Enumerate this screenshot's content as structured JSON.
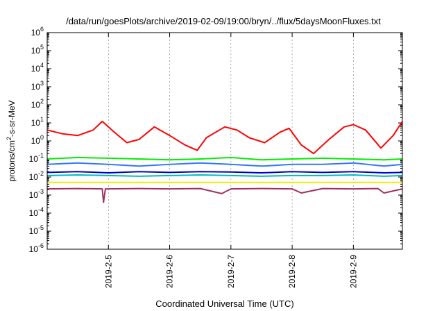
{
  "chart_data": {
    "type": "line",
    "title": "/data/run/goesPlots/archive/2019-02-09/19:00/bryn/../flux/5daysMoonFluxes.txt",
    "xlabel": "Coordinated Universal Time (UTC)",
    "ylabel": {
      "base": "protons/cm",
      "sup": "2",
      "rest": "-s-sr-MeV"
    },
    "yscale": "log",
    "ylim_exp": [
      -6,
      6
    ],
    "y_ticks": [
      {
        "base": "10",
        "exp": "-6"
      },
      {
        "base": "10",
        "exp": "-5"
      },
      {
        "base": "10",
        "exp": "-4"
      },
      {
        "base": "10",
        "exp": "-3"
      },
      {
        "base": "10",
        "exp": "-2"
      },
      {
        "base": "10",
        "exp": "-1"
      },
      {
        "base": "10",
        "exp": "0"
      },
      {
        "base": "10",
        "exp": "1"
      },
      {
        "base": "10",
        "exp": "2"
      },
      {
        "base": "10",
        "exp": "3"
      },
      {
        "base": "10",
        "exp": "4"
      },
      {
        "base": "10",
        "exp": "5"
      },
      {
        "base": "10",
        "exp": "6"
      }
    ],
    "xlim_days": [
      4.0,
      9.8
    ],
    "x_ticks": [
      {
        "day": 5,
        "label": "2019-2-5"
      },
      {
        "day": 6,
        "label": "2019-2-6"
      },
      {
        "day": 7,
        "label": "2019-2-7"
      },
      {
        "day": 8,
        "label": "2019-2-8"
      },
      {
        "day": 9,
        "label": "2019-2-9"
      }
    ],
    "grid": "vertical dashed at major x ticks",
    "series": [
      {
        "color": "#ff0000",
        "x": [
          4.0,
          4.25,
          4.5,
          4.75,
          4.9,
          5.1,
          5.3,
          5.5,
          5.75,
          6.0,
          6.25,
          6.45,
          6.6,
          6.9,
          7.1,
          7.3,
          7.55,
          7.8,
          7.95,
          8.15,
          8.35,
          8.6,
          8.85,
          9.0,
          9.2,
          9.45,
          9.65,
          9.8
        ],
        "y": [
          4,
          2.5,
          2,
          4,
          12,
          3,
          0.8,
          1.2,
          6,
          2,
          0.6,
          0.3,
          1.5,
          6,
          4,
          1.5,
          0.8,
          3,
          5,
          0.6,
          0.2,
          1.2,
          6,
          8,
          4,
          0.4,
          2,
          12
        ]
      },
      {
        "color": "#00ee00",
        "x": [
          4.0,
          4.5,
          5.0,
          5.5,
          6.0,
          6.5,
          7.0,
          7.5,
          8.0,
          8.5,
          9.0,
          9.5,
          9.8
        ],
        "y": [
          0.1,
          0.12,
          0.11,
          0.1,
          0.09,
          0.1,
          0.12,
          0.09,
          0.1,
          0.11,
          0.1,
          0.09,
          0.1
        ]
      },
      {
        "color": "#3377ff",
        "x": [
          4.0,
          4.5,
          5.0,
          5.5,
          6.0,
          6.5,
          7.0,
          7.5,
          8.0,
          8.5,
          9.0,
          9.5,
          9.8
        ],
        "y": [
          0.05,
          0.06,
          0.05,
          0.04,
          0.05,
          0.06,
          0.05,
          0.04,
          0.05,
          0.05,
          0.06,
          0.04,
          0.05
        ]
      },
      {
        "color": "#0000cc",
        "x": [
          4.0,
          4.5,
          5.0,
          5.5,
          6.0,
          6.5,
          7.0,
          7.5,
          8.0,
          8.5,
          9.0,
          9.5,
          9.8
        ],
        "y": [
          0.018,
          0.02,
          0.017,
          0.02,
          0.018,
          0.02,
          0.019,
          0.017,
          0.02,
          0.018,
          0.02,
          0.017,
          0.018
        ]
      },
      {
        "color": "#00bbbb",
        "x": [
          4.0,
          4.5,
          5.0,
          5.5,
          6.0,
          6.5,
          7.0,
          7.5,
          8.0,
          8.5,
          9.0,
          9.5,
          9.8
        ],
        "y": [
          0.012,
          0.013,
          0.012,
          0.011,
          0.012,
          0.013,
          0.012,
          0.011,
          0.012,
          0.012,
          0.013,
          0.011,
          0.012
        ]
      },
      {
        "color": "#eeee00",
        "x": [
          4.0,
          4.5,
          5.0,
          5.5,
          6.0,
          6.5,
          7.0,
          7.5,
          8.0,
          8.5,
          9.0,
          9.5,
          9.8
        ],
        "y": [
          0.005,
          0.005,
          0.005,
          0.005,
          0.005,
          0.005,
          0.005,
          0.005,
          0.005,
          0.005,
          0.005,
          0.005,
          0.005
        ]
      },
      {
        "color": "#a03060",
        "x": [
          4.0,
          4.5,
          4.9,
          4.92,
          4.95,
          5.5,
          6.0,
          6.5,
          6.85,
          7.0,
          7.5,
          8.0,
          8.15,
          8.5,
          9.0,
          9.4,
          9.5,
          9.8
        ],
        "y": [
          0.0022,
          0.0023,
          0.0022,
          0.0004,
          0.0022,
          0.0023,
          0.0022,
          0.0023,
          0.0012,
          0.0022,
          0.0023,
          0.0022,
          0.0013,
          0.0023,
          0.0022,
          0.0023,
          0.0013,
          0.0022
        ]
      }
    ]
  }
}
